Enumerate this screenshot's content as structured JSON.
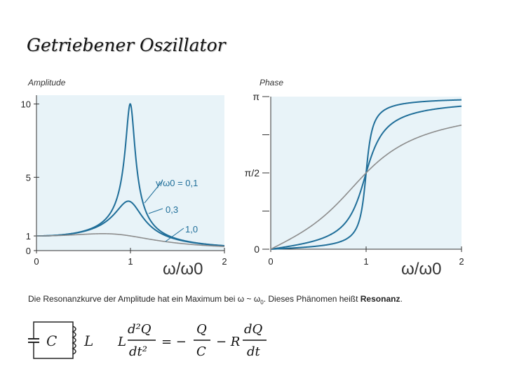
{
  "slide": {
    "title": "Getriebener Oszillator",
    "caption_text": "Die Resonanzkurve der Amplitude hat ein Maximum bei ω ~ ω",
    "caption_sub": "0",
    "caption_after": ". Dieses Phänomen heißt ",
    "caption_bold": "Resonanz",
    "caption_end": ".",
    "equation_lhs_num": "d²Q",
    "equation_lhs_den": "dt²",
    "equation_mid_num": "Q",
    "equation_mid_den": "C",
    "equation_rhs_num": "dQ",
    "equation_rhs_den": "dt",
    "circuit_c_label": "C",
    "circuit_l_label": "L",
    "eq_L": "L",
    "eq_equals": "= −",
    "eq_minus_R": "− R"
  },
  "colors": {
    "panel_bg": "#e8f3f8",
    "curve_blue": "#1f6e99",
    "curve_gray": "#8c8c8c",
    "axis": "#333333"
  },
  "chart_data": [
    {
      "type": "line",
      "title": "Amplitude",
      "xlabel": "ω/ω0",
      "xlim": [
        0,
        2
      ],
      "ylim": [
        0,
        10.6
      ],
      "x_ticks": [
        "0",
        "1",
        "2"
      ],
      "y_ticks": [
        "0",
        "1",
        "5",
        "10"
      ],
      "series": [
        {
          "name": "γ/ω0 = 0,1",
          "damping": 0.1
        },
        {
          "name": "0,3",
          "damping": 0.3
        },
        {
          "name": "1,0",
          "damping": 1.0
        }
      ],
      "annotations": [
        "γ/ω0 = 0,1",
        "0,3",
        "1,0"
      ]
    },
    {
      "type": "line",
      "title": "Phase",
      "xlabel": "ω/ω0",
      "xlim": [
        0,
        2
      ],
      "ylim": [
        0,
        3.1416
      ],
      "x_ticks": [
        "0",
        "1",
        "2"
      ],
      "y_ticks": [
        "0",
        "π/2",
        "π"
      ],
      "series": [
        {
          "damping": 0.1
        },
        {
          "damping": 0.3
        },
        {
          "damping": 1.0
        }
      ]
    }
  ]
}
